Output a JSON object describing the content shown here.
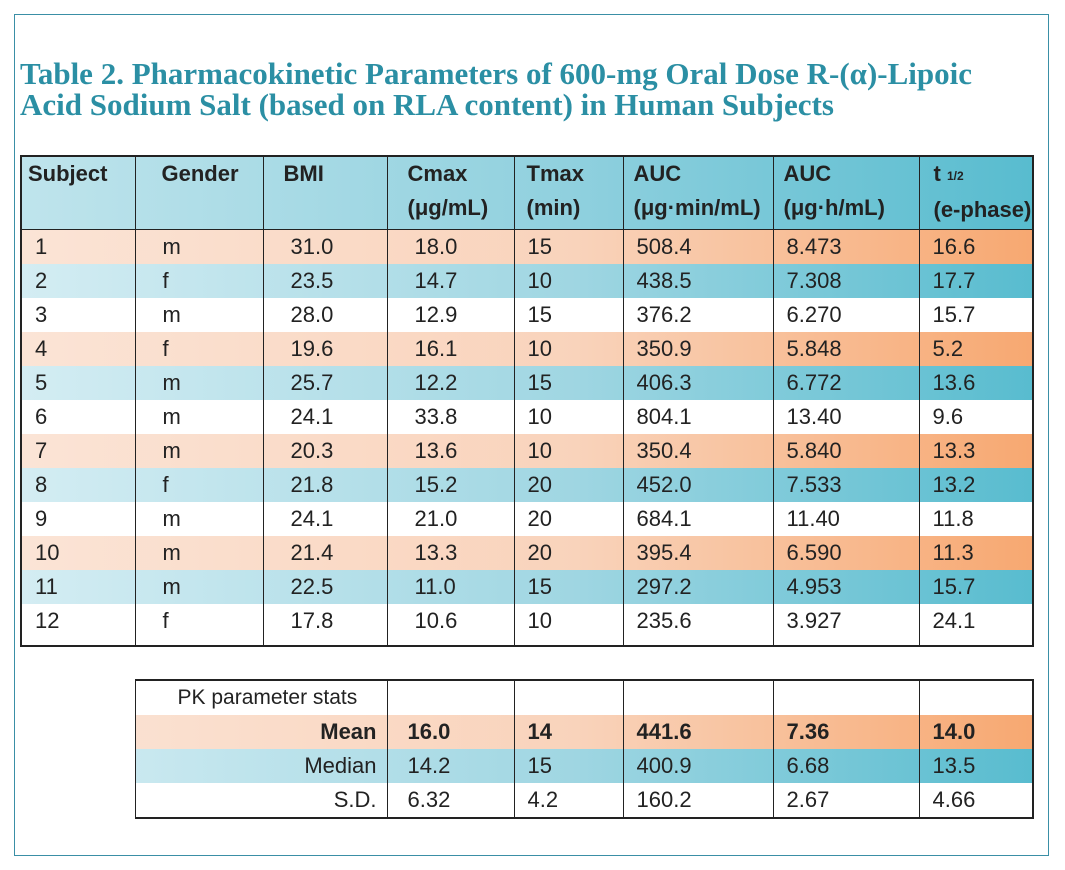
{
  "title": {
    "line1": "Table 2. Pharmacokinetic Parameters of 600-mg Oral Dose R-(α)-Lipoic",
    "line2": "Acid Sodium Salt (based on RLA content) in Human Subjects"
  },
  "columns": {
    "subject": "Subject",
    "gender": "Gender",
    "bmi": "BMI",
    "cmax": "Cmax",
    "cmax_unit": "(μg/mL)",
    "tmax": "Tmax",
    "tmax_unit": "(min)",
    "auc1": "AUC",
    "auc1_unit": "(μg·min/mL)",
    "auc2": "AUC",
    "auc2_unit": "(μg·h/mL)",
    "thalf": "t",
    "thalf_sub": "1/2",
    "thalf_unit": "(e-phase)"
  },
  "rows": [
    {
      "subject": "1",
      "gender": "m",
      "bmi": "31.0",
      "cmax": "18.0",
      "tmax": "15",
      "auc_min": "508.4",
      "auc_h": "8.473",
      "thalf": "16.6"
    },
    {
      "subject": "2",
      "gender": "f",
      "bmi": "23.5",
      "cmax": "14.7",
      "tmax": "10",
      "auc_min": "438.5",
      "auc_h": "7.308",
      "thalf": "17.7"
    },
    {
      "subject": "3",
      "gender": "m",
      "bmi": "28.0",
      "cmax": "12.9",
      "tmax": "15",
      "auc_min": "376.2",
      "auc_h": "6.270",
      "thalf": "15.7"
    },
    {
      "subject": "4",
      "gender": "f",
      "bmi": "19.6",
      "cmax": "16.1",
      "tmax": "10",
      "auc_min": "350.9",
      "auc_h": "5.848",
      "thalf": "5.2"
    },
    {
      "subject": "5",
      "gender": "m",
      "bmi": "25.7",
      "cmax": "12.2",
      "tmax": "15",
      "auc_min": "406.3",
      "auc_h": "6.772",
      "thalf": "13.6"
    },
    {
      "subject": "6",
      "gender": "m",
      "bmi": "24.1",
      "cmax": "33.8",
      "tmax": "10",
      "auc_min": "804.1",
      "auc_h": "13.40",
      "thalf": "9.6"
    },
    {
      "subject": "7",
      "gender": "m",
      "bmi": "20.3",
      "cmax": "13.6",
      "tmax": "10",
      "auc_min": "350.4",
      "auc_h": "5.840",
      "thalf": "13.3"
    },
    {
      "subject": "8",
      "gender": "f",
      "bmi": "21.8",
      "cmax": "15.2",
      "tmax": "20",
      "auc_min": "452.0",
      "auc_h": "7.533",
      "thalf": "13.2"
    },
    {
      "subject": "9",
      "gender": "m",
      "bmi": "24.1",
      "cmax": "21.0",
      "tmax": "20",
      "auc_min": "684.1",
      "auc_h": "11.40",
      "thalf": "11.8"
    },
    {
      "subject": "10",
      "gender": "m",
      "bmi": "21.4",
      "cmax": "13.3",
      "tmax": "20",
      "auc_min": "395.4",
      "auc_h": "6.590",
      "thalf": "11.3"
    },
    {
      "subject": "11",
      "gender": "m",
      "bmi": "22.5",
      "cmax": "11.0",
      "tmax": "15",
      "auc_min": "297.2",
      "auc_h": "4.953",
      "thalf": "15.7"
    },
    {
      "subject": "12",
      "gender": "f",
      "bmi": "17.8",
      "cmax": "10.6",
      "tmax": "10",
      "auc_min": "235.6",
      "auc_h": "3.927",
      "thalf": "24.1"
    }
  ],
  "stats": {
    "caption": "PK parameter stats",
    "mean": {
      "label": "Mean",
      "cmax": "16.0",
      "tmax": "14",
      "auc_min": "441.6",
      "auc_h": "7.36",
      "thalf": "14.0"
    },
    "median": {
      "label": "Median",
      "cmax": "14.2",
      "tmax": "15",
      "auc_min": "400.9",
      "auc_h": "6.68",
      "thalf": "13.5"
    },
    "sd": {
      "label": "S.D.",
      "cmax": "6.32",
      "tmax": "4.2",
      "auc_min": "160.2",
      "auc_h": "2.67",
      "thalf": "4.66"
    }
  },
  "colors": {
    "title": "#2b8fa4",
    "row_orange": "#f7a871",
    "row_blue": "#58bccf",
    "border": "#3a8fa6"
  }
}
